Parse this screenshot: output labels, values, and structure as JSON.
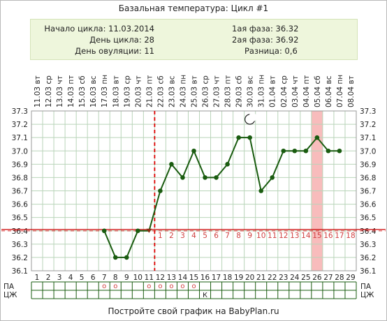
{
  "title": "Базальная температура: Цикл #1",
  "summary": {
    "cycle_start_label": "Начало цикла:",
    "cycle_start_value": "11.03.2014",
    "cycle_day_label": "День цикла:",
    "cycle_day_value": "28",
    "ovulation_day_label": "День овуляции:",
    "ovulation_day_value": "11",
    "phase1_label": "1ая фаза:",
    "phase1_value": "36.32",
    "phase2_label": "2ая фаза:",
    "phase2_value": "36.92",
    "difference_label": "Разница:",
    "difference_value": "0,6"
  },
  "footer": "Постройте свой график на BabyPlan.ru",
  "colors": {
    "line": "#1a5c10",
    "coverline": "#cc0000",
    "ovulation": "#dd0000",
    "highlight": "#f8bcbc",
    "phase_numbers": "#d04040",
    "grid": "#b9d4b9"
  },
  "icons": {
    "moon_day": 20,
    "moon": "moon-icon"
  },
  "chart_data": {
    "type": "line",
    "ylim": [
      36.1,
      37.3
    ],
    "yticks": [
      "36.1",
      "36.2",
      "36.3",
      "36.4",
      "36.5",
      "36.6",
      "36.7",
      "36.8",
      "36.9",
      "37.0",
      "37.1",
      "37.2",
      "37.3"
    ],
    "days": [
      1,
      2,
      3,
      4,
      5,
      6,
      7,
      8,
      9,
      10,
      11,
      12,
      13,
      14,
      15,
      16,
      17,
      18,
      19,
      20,
      21,
      22,
      23,
      24,
      25,
      26,
      27,
      28,
      29
    ],
    "dates": [
      "11.03",
      "12.03",
      "13.03",
      "14.03",
      "15.03",
      "16.03",
      "17.03",
      "18.03",
      "19.03",
      "20.03",
      "21.03",
      "22.03",
      "23.03",
      "24.03",
      "25.03",
      "26.03",
      "27.03",
      "28.03",
      "29.03",
      "30.03",
      "31.03",
      "01.04",
      "02.04",
      "03.04",
      "04.04",
      "05.04",
      "06.04",
      "07.04",
      "08.04"
    ],
    "weekdays": [
      "вт",
      "ср",
      "чт",
      "пт",
      "сб",
      "вс",
      "пн",
      "вт",
      "ср",
      "чт",
      "пт",
      "сб",
      "вс",
      "пн",
      "вт",
      "ср",
      "чт",
      "пт",
      "сб",
      "вс",
      "пн",
      "вт",
      "ср",
      "чт",
      "пт",
      "сб",
      "вс",
      "пн",
      "вт"
    ],
    "series": [
      {
        "points": [
          [
            7,
            36.4
          ],
          [
            8,
            36.2
          ],
          [
            9,
            36.2
          ],
          [
            10,
            36.4
          ],
          [
            11,
            36.4
          ],
          [
            12,
            36.7
          ],
          [
            13,
            36.9
          ],
          [
            14,
            36.8
          ],
          [
            15,
            37.0
          ],
          [
            16,
            36.8
          ],
          [
            17,
            36.8
          ],
          [
            18,
            36.9
          ],
          [
            19,
            37.1
          ],
          [
            20,
            37.1
          ],
          [
            21,
            36.7
          ],
          [
            22,
            36.8
          ],
          [
            23,
            37.0
          ],
          [
            24,
            37.0
          ],
          [
            25,
            37.0
          ],
          [
            26,
            37.1
          ],
          [
            27,
            37.0
          ],
          [
            28,
            37.0
          ]
        ]
      }
    ],
    "coverline": 36.41,
    "ovulation_day": 11,
    "highlight_day": 26,
    "phase2_numbers": [
      "1",
      "2",
      "3",
      "4",
      "5",
      "6",
      "7",
      "8",
      "9",
      "10",
      "11",
      "12",
      "13",
      "14",
      "15",
      "16",
      "17",
      "18"
    ],
    "row_labels": [
      "ПА",
      "ЦЖ"
    ],
    "pa_marks": [
      7,
      8,
      11,
      12,
      13,
      14,
      15
    ],
    "pa_symbol": "o",
    "cm_marks": [
      {
        "day": 16,
        "symbol": "К"
      }
    ]
  }
}
